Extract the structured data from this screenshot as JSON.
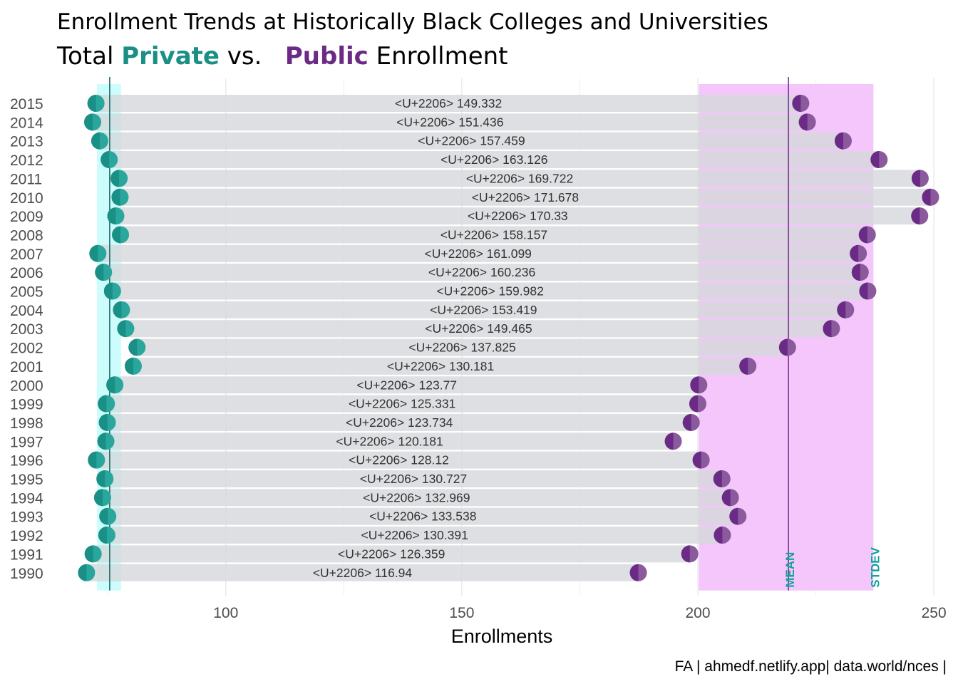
{
  "title": "Enrollment Trends at Historically Black Colleges and Universities",
  "subtitle": {
    "prefix": "Total",
    "private_word": "Private",
    "vs": "vs.",
    "public_word": "Public",
    "suffix": "Enrollment"
  },
  "caption": "FA | ahmedf.netlify.app| data.world/nces |",
  "colors": {
    "private": "#1a8f86",
    "public": "#6a2a86",
    "private_band": "#ccfcfc",
    "public_band": "#f4c6fc",
    "bar": "#d5d8dc",
    "grid": "#e8e8e8",
    "mean_label": "#13a39a"
  },
  "chart_data": {
    "type": "dumbbell",
    "xlabel": "Enrollments",
    "xlim": [
      65,
      253
    ],
    "x_ticks": [
      100,
      150,
      200,
      250
    ],
    "series_names": [
      "Private",
      "Public"
    ],
    "ref_lines": {
      "mean_label": "MEAN",
      "stdev_label": "STDEV",
      "private_mean": 75.4,
      "private_band": [
        72.7,
        77.8
      ],
      "public_mean": 219.2,
      "public_band": [
        200.2,
        237.2
      ]
    },
    "rows": [
      {
        "year": "2015",
        "private": 72.5,
        "public": 221.8,
        "label": "<U+2206> 149.332"
      },
      {
        "year": "2014",
        "private": 71.8,
        "public": 223.2,
        "label": "<U+2206> 151.436"
      },
      {
        "year": "2013",
        "private": 73.3,
        "public": 230.8,
        "label": "<U+2206> 157.459"
      },
      {
        "year": "2012",
        "private": 75.3,
        "public": 238.4,
        "label": "<U+2206> 163.126"
      },
      {
        "year": "2011",
        "private": 77.4,
        "public": 247.1,
        "label": "<U+2206> 169.722"
      },
      {
        "year": "2010",
        "private": 77.6,
        "public": 249.3,
        "label": "<U+2206> 171.678"
      },
      {
        "year": "2009",
        "private": 76.7,
        "public": 247.0,
        "label": "<U+2206> 170.33"
      },
      {
        "year": "2008",
        "private": 77.7,
        "public": 235.9,
        "label": "<U+2206> 158.157"
      },
      {
        "year": "2007",
        "private": 72.9,
        "public": 234.0,
        "label": "<U+2206> 161.099"
      },
      {
        "year": "2006",
        "private": 74.1,
        "public": 234.4,
        "label": "<U+2206> 160.236"
      },
      {
        "year": "2005",
        "private": 76.0,
        "public": 236.0,
        "label": "<U+2206> 159.982"
      },
      {
        "year": "2004",
        "private": 77.9,
        "public": 231.3,
        "label": "<U+2206> 153.419"
      },
      {
        "year": "2003",
        "private": 78.8,
        "public": 228.3,
        "label": "<U+2206> 149.465"
      },
      {
        "year": "2002",
        "private": 81.2,
        "public": 219.0,
        "label": "<U+2206> 137.825"
      },
      {
        "year": "2001",
        "private": 80.4,
        "public": 210.6,
        "label": "<U+2206> 130.181"
      },
      {
        "year": "2000",
        "private": 76.5,
        "public": 200.2,
        "label": "<U+2206> 123.77"
      },
      {
        "year": "1999",
        "private": 74.7,
        "public": 200.0,
        "label": "<U+2206> 125.331"
      },
      {
        "year": "1998",
        "private": 74.9,
        "public": 198.6,
        "label": "<U+2206> 123.734"
      },
      {
        "year": "1997",
        "private": 74.6,
        "public": 194.8,
        "label": "<U+2206> 120.181"
      },
      {
        "year": "1996",
        "private": 72.6,
        "public": 200.7,
        "label": "<U+2206> 128.12"
      },
      {
        "year": "1995",
        "private": 74.4,
        "public": 205.1,
        "label": "<U+2206> 130.727"
      },
      {
        "year": "1994",
        "private": 73.9,
        "public": 206.9,
        "label": "<U+2206> 132.969"
      },
      {
        "year": "1993",
        "private": 75.0,
        "public": 208.5,
        "label": "<U+2206> 133.538"
      },
      {
        "year": "1992",
        "private": 74.8,
        "public": 205.2,
        "label": "<U+2206> 130.391"
      },
      {
        "year": "1991",
        "private": 71.9,
        "public": 198.3,
        "label": "<U+2206> 126.359"
      },
      {
        "year": "1990",
        "private": 70.5,
        "public": 187.4,
        "label": "<U+2206> 116.94"
      }
    ]
  }
}
